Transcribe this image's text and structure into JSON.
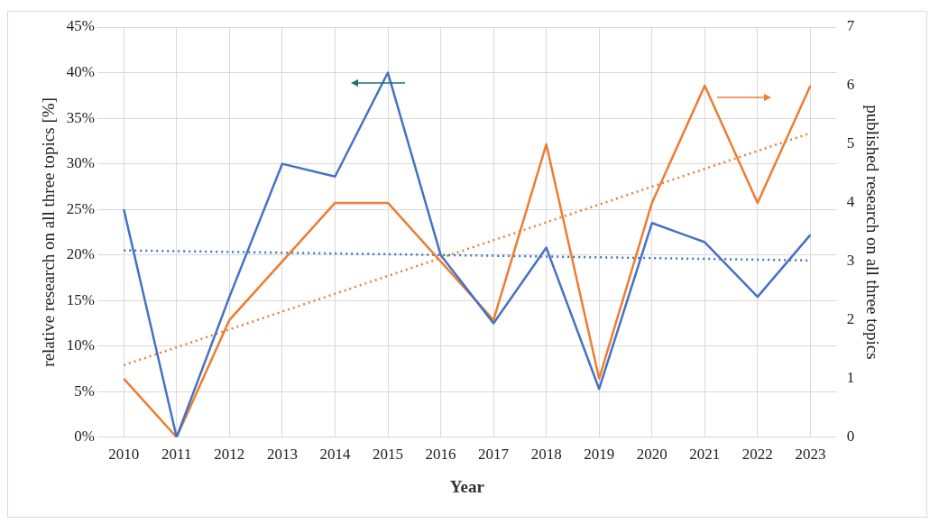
{
  "chart_data": {
    "type": "line",
    "xlabel": "Year",
    "ylabel": "relative research on all three topics [%]",
    "y2label": "published research on all three topics",
    "categories": [
      "2010",
      "2011",
      "2012",
      "2013",
      "2014",
      "2015",
      "2016",
      "2017",
      "2018",
      "2019",
      "2020",
      "2021",
      "2022",
      "2023"
    ],
    "series": [
      {
        "color": "#4472c4",
        "values": [
          25,
          0,
          15.4,
          30,
          28.6,
          40,
          20,
          12.5,
          20.8,
          5.3,
          23.5,
          21.4,
          15.4,
          22.2
        ]
      },
      {
        "color": "#ed7d31",
        "axis": "y2",
        "values": [
          1,
          0,
          2,
          3,
          4,
          4,
          3,
          2,
          5,
          1,
          4,
          6,
          4,
          6
        ]
      },
      {
        "type": "line",
        "color": "#4472c4",
        "line_style": "dotted",
        "values": [
          20.5,
          null,
          null,
          null,
          null,
          null,
          null,
          null,
          null,
          null,
          null,
          null,
          null,
          19.4
        ]
      },
      {
        "type": "line",
        "color": "#ed7d31",
        "axis": "y2",
        "line_style": "dotted",
        "values": [
          1.23,
          null,
          null,
          null,
          null,
          null,
          null,
          null,
          null,
          null,
          null,
          null,
          null,
          5.19
        ]
      }
    ],
    "ylim": [
      0,
      45
    ],
    "yticks": [
      {
        "value": 0,
        "label": "0%"
      },
      {
        "value": 5,
        "label": "5%"
      },
      {
        "value": 10,
        "label": "10%"
      },
      {
        "value": 15,
        "label": "15%"
      },
      {
        "value": 20,
        "label": "20%"
      },
      {
        "value": 25,
        "label": "25%"
      },
      {
        "value": 30,
        "label": "30%"
      },
      {
        "value": 35,
        "label": "35%"
      },
      {
        "value": 40,
        "label": "40%"
      },
      {
        "value": 45,
        "label": "45%"
      }
    ],
    "y2lim": [
      0,
      7
    ],
    "y2ticks": [
      0,
      1,
      2,
      3,
      4,
      5,
      6,
      7
    ],
    "grid": true,
    "marker": "none",
    "line_style": "solid",
    "legend": false
  }
}
